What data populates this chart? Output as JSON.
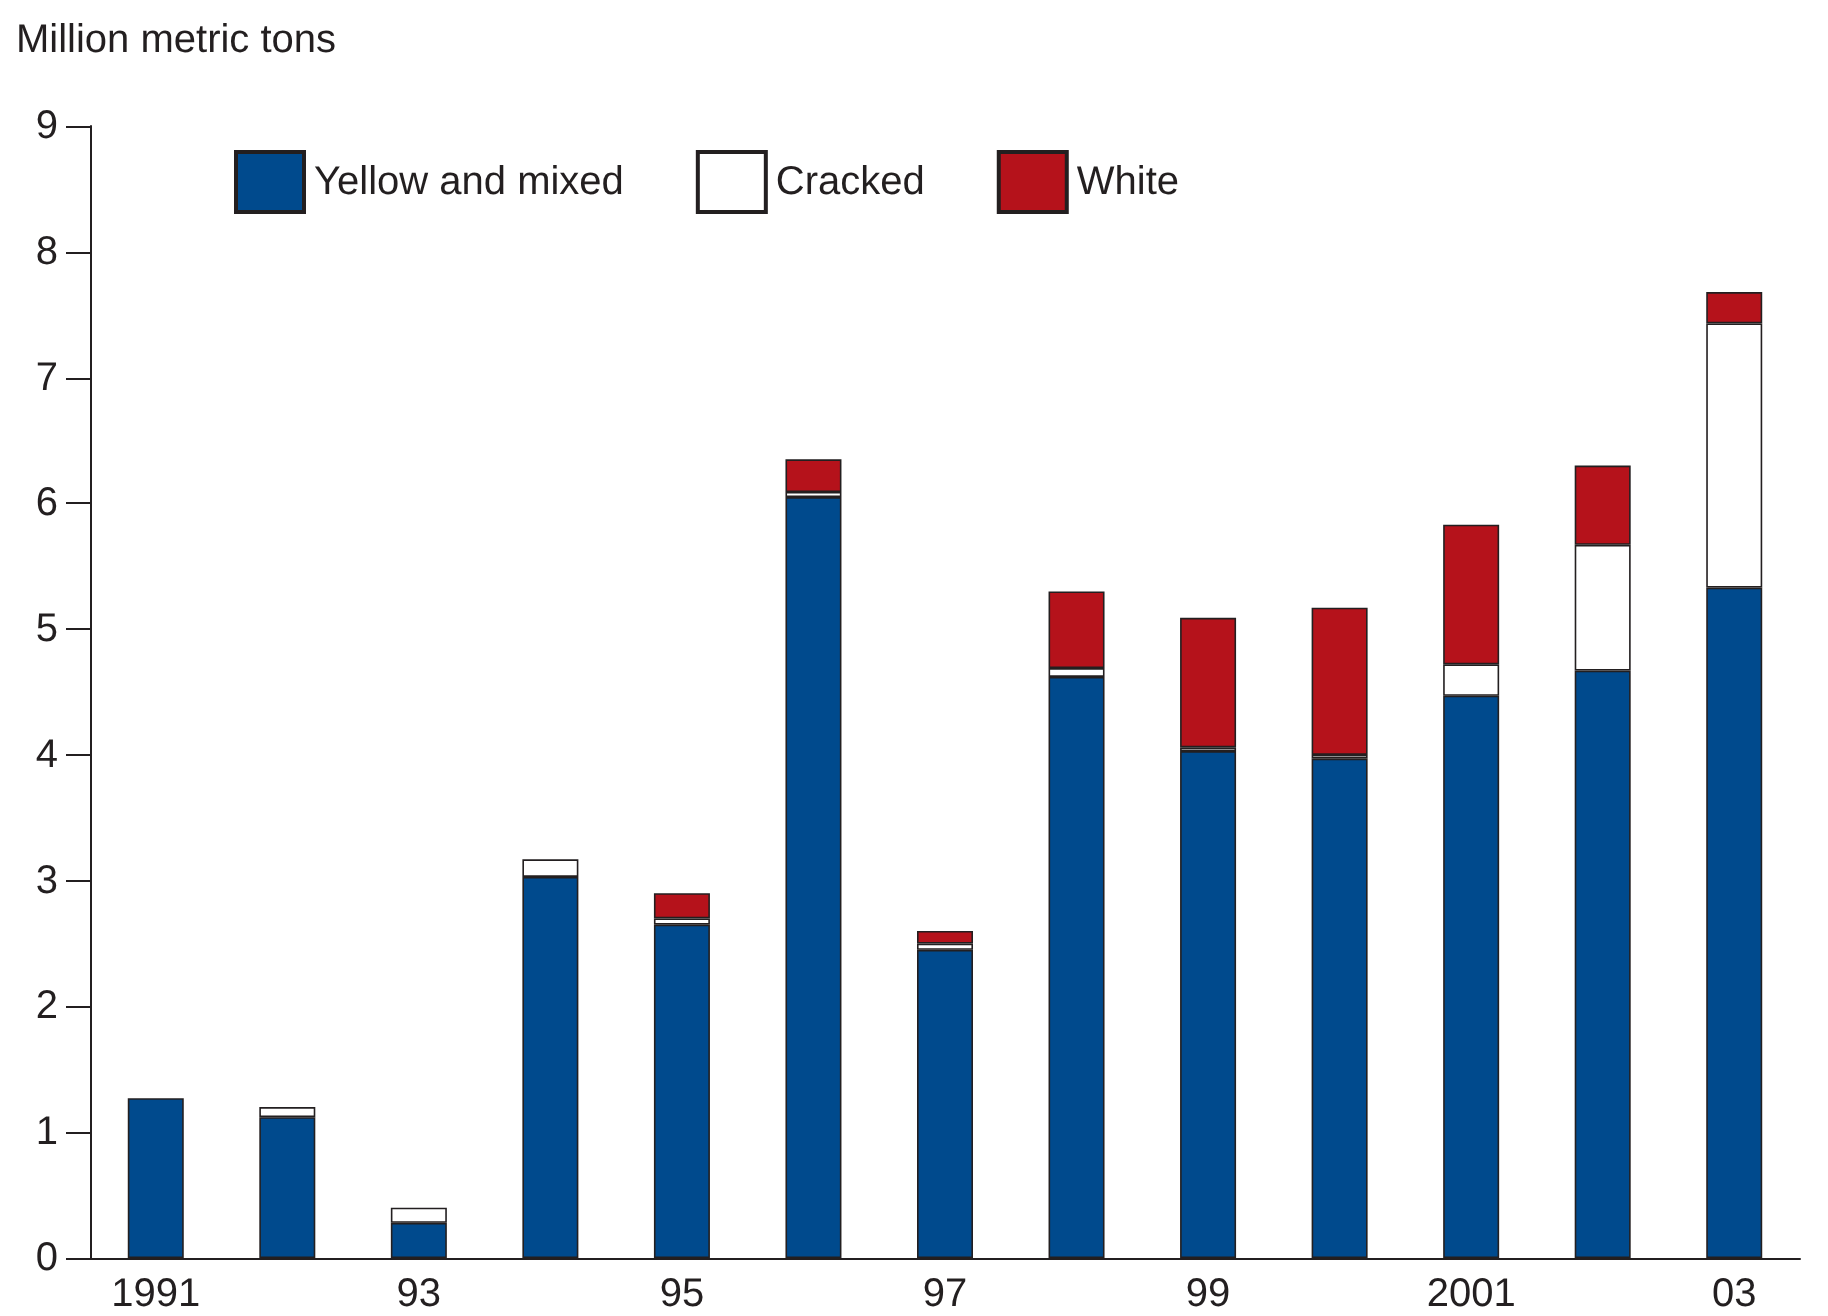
{
  "chart_data": {
    "type": "bar",
    "ylabel": "Million metric tons",
    "stacked": true,
    "legend": "top left",
    "grid": false,
    "categories": [
      "1991",
      null,
      "93",
      null,
      "95",
      null,
      "97",
      null,
      "99",
      null,
      "2001",
      null,
      "03"
    ],
    "series": [
      {
        "name": "Yellow and mixed",
        "color": "#004a8d",
        "values": [
          1.27,
          1.12,
          0.28,
          3.03,
          2.65,
          6.05,
          2.45,
          4.62,
          4.03,
          3.97,
          4.47,
          4.67,
          5.33
        ]
      },
      {
        "name": "Cracked",
        "color": "#ffffff",
        "values": [
          0,
          0.08,
          0.12,
          0.14,
          0.05,
          0.04,
          0.05,
          0.07,
          0.03,
          0.03,
          0.25,
          1.0,
          2.1
        ]
      },
      {
        "name": "White",
        "color": "#b5121b",
        "values": [
          0,
          0,
          0,
          0,
          0.2,
          0.26,
          0.1,
          0.61,
          1.03,
          1.17,
          1.11,
          0.63,
          0.25
        ]
      }
    ],
    "ylim": [
      0,
      9
    ],
    "yticks": [
      0,
      1,
      2,
      3,
      4,
      5,
      6,
      7,
      8,
      9
    ]
  }
}
